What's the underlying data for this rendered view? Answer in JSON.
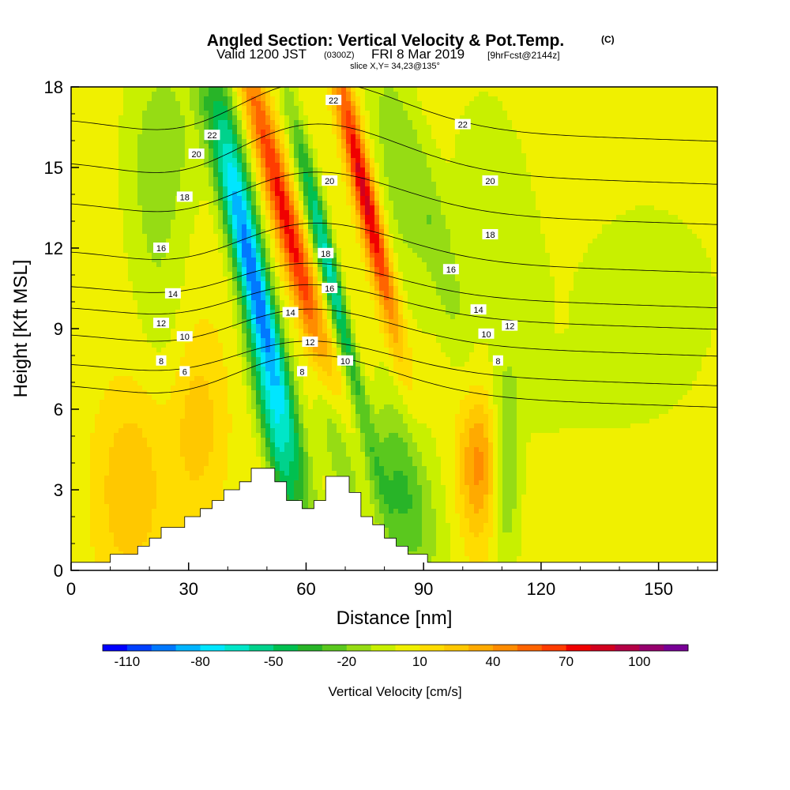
{
  "chart_data": {
    "type": "heatmap",
    "title": "Angled Section: Vertical Velocity & Pot.Temp.",
    "title_units": "(C)",
    "subtitle": {
      "valid_prefix": "Valid 1200 JST",
      "utc": "(0300Z)",
      "date": "FRI 8 Mar 2019",
      "fcst": "[9hrFcst@2144z]"
    },
    "slice_label": "slice X,Y= 34,23@135°",
    "xlabel": "Distance [nm]",
    "ylabel": "Height [Kft MSL]",
    "xlim": [
      0,
      165
    ],
    "ylim": [
      0,
      18
    ],
    "x_ticks": [
      0,
      30,
      60,
      90,
      120,
      150
    ],
    "y_ticks": [
      0,
      3,
      6,
      9,
      12,
      15,
      18
    ],
    "colorbar": {
      "label": "Vertical Velocity [cm/s]",
      "tick_labels": [
        "-110",
        "-80",
        "-50",
        "-20",
        "10",
        "40",
        "70",
        "100"
      ],
      "bounds": [
        -120,
        120
      ],
      "colors": [
        "#0000ff",
        "#0040ff",
        "#0078ff",
        "#00b4ff",
        "#00e6ff",
        "#00e6c8",
        "#00d28c",
        "#00c050",
        "#28b428",
        "#5ac81e",
        "#96dc14",
        "#c8f000",
        "#f0f000",
        "#ffdc00",
        "#ffc800",
        "#ffaa00",
        "#ff8c00",
        "#ff6400",
        "#ff3c00",
        "#f00000",
        "#d2001e",
        "#b40046",
        "#96006e",
        "#780096"
      ]
    },
    "terrain": {
      "description": "white terrain silhouette",
      "profile": [
        [
          0,
          0.3
        ],
        [
          10,
          0.3
        ],
        [
          10,
          0.6
        ],
        [
          17,
          0.6
        ],
        [
          17,
          0.9
        ],
        [
          20,
          0.9
        ],
        [
          20,
          1.2
        ],
        [
          23,
          1.2
        ],
        [
          23,
          1.6
        ],
        [
          29,
          1.6
        ],
        [
          29,
          2.0
        ],
        [
          33,
          2.0
        ],
        [
          33,
          2.3
        ],
        [
          36,
          2.3
        ],
        [
          36,
          2.6
        ],
        [
          39,
          2.6
        ],
        [
          39,
          3.0
        ],
        [
          43,
          3.0
        ],
        [
          43,
          3.3
        ],
        [
          46,
          3.3
        ],
        [
          46,
          3.8
        ],
        [
          52,
          3.8
        ],
        [
          52,
          3.3
        ],
        [
          55,
          3.3
        ],
        [
          55,
          2.6
        ],
        [
          59,
          2.6
        ],
        [
          59,
          2.3
        ],
        [
          62,
          2.3
        ],
        [
          62,
          2.6
        ],
        [
          65,
          2.6
        ],
        [
          65,
          3.5
        ],
        [
          71,
          3.5
        ],
        [
          71,
          2.9
        ],
        [
          74,
          2.9
        ],
        [
          74,
          2.0
        ],
        [
          77,
          2.0
        ],
        [
          77,
          1.7
        ],
        [
          80,
          1.7
        ],
        [
          80,
          1.2
        ],
        [
          83,
          1.2
        ],
        [
          83,
          0.9
        ],
        [
          86,
          0.9
        ],
        [
          86,
          0.6
        ],
        [
          91,
          0.6
        ],
        [
          91,
          0.3
        ],
        [
          165,
          0.3
        ]
      ]
    },
    "w_field": [
      {
        "x": 47,
        "y": 10.5,
        "value": -95,
        "sx": 2.6,
        "sy": 4.5,
        "tilt": 0.34
      },
      {
        "x": 42,
        "y": 15.5,
        "value": -40,
        "sx": 2.2,
        "sy": 3.0,
        "tilt": 0.3
      },
      {
        "x": 52,
        "y": 5.0,
        "value": -55,
        "sx": 2.5,
        "sy": 3.0,
        "tilt": 0.3
      },
      {
        "x": 67,
        "y": 10.5,
        "value": -80,
        "sx": 1.8,
        "sy": 4.2,
        "tilt": 0.32
      },
      {
        "x": 68,
        "y": 5.0,
        "value": -35,
        "sx": 2.5,
        "sy": 2.5,
        "tilt": 0.3
      },
      {
        "x": 55,
        "y": 13.0,
        "value": 70,
        "sx": 2.4,
        "sy": 5.0,
        "tilt": 0.35
      },
      {
        "x": 75,
        "y": 14.0,
        "value": 80,
        "sx": 2.0,
        "sy": 3.8,
        "tilt": 0.3
      },
      {
        "x": 72,
        "y": 7.5,
        "value": 25,
        "sx": 2.8,
        "sy": 3.0,
        "tilt": 0.3
      },
      {
        "x": 84,
        "y": 3.0,
        "value": -38,
        "sx": 6.0,
        "sy": 2.5,
        "tilt": 0.25
      },
      {
        "x": 24,
        "y": 16.0,
        "value": -20,
        "sx": 6.0,
        "sy": 2.5,
        "tilt": 0.0
      },
      {
        "x": 22,
        "y": 11.0,
        "value": -12,
        "sx": 5.0,
        "sy": 3.5,
        "tilt": 0.15
      },
      {
        "x": 83,
        "y": 15.0,
        "value": -20,
        "sx": 4.0,
        "sy": 3.5,
        "tilt": 0.2
      },
      {
        "x": 93,
        "y": 12.5,
        "value": -20,
        "sx": 3.0,
        "sy": 3.0,
        "tilt": 0.3
      },
      {
        "x": 104,
        "y": 4.0,
        "value": 40,
        "sx": 3.5,
        "sy": 2.0,
        "tilt": 0.0
      },
      {
        "x": 111,
        "y": 3.5,
        "value": -25,
        "sx": 2.5,
        "sy": 2.5,
        "tilt": 0.0
      },
      {
        "x": 108,
        "y": 12.5,
        "value": -12,
        "sx": 8.0,
        "sy": 4.0,
        "tilt": 0.1
      },
      {
        "x": 15,
        "y": 3.0,
        "value": 25,
        "sx": 6.0,
        "sy": 2.5,
        "tilt": 0.0
      },
      {
        "x": 32,
        "y": 5.5,
        "value": 22,
        "sx": 5.0,
        "sy": 2.5,
        "tilt": 0.0
      },
      {
        "x": 147,
        "y": 10.0,
        "value": -10,
        "sx": 15.0,
        "sy": 3.0,
        "tilt": 0.0
      },
      {
        "x": 125,
        "y": 6.5,
        "value": -8,
        "sx": 15.0,
        "sy": 1.0,
        "tilt": 0.0
      }
    ],
    "w_background": 5,
    "theta_isotherms": [
      {
        "value": 6,
        "label": "6",
        "y0": 6.5,
        "amp": 1.5,
        "ridge_x": 60
      },
      {
        "value": 8,
        "label": "8",
        "y0": 7.3,
        "amp": 1.2,
        "ridge_x": 60
      },
      {
        "value": 10,
        "label": "10",
        "y0": 8.4,
        "amp": 1.3,
        "ridge_x": 60
      },
      {
        "value": 12,
        "label": "12",
        "y0": 9.4,
        "amp": 1.2,
        "ridge_x": 60
      },
      {
        "value": 14,
        "label": "14",
        "y0": 10.2,
        "amp": 1.2,
        "ridge_x": 60
      },
      {
        "value": 16,
        "label": "16",
        "y0": 11.5,
        "amp": 1.4,
        "ridge_x": 62
      },
      {
        "value": 18,
        "label": "18",
        "y0": 13.3,
        "amp": 1.5,
        "ridge_x": 62
      },
      {
        "value": 20,
        "label": "20",
        "y0": 14.8,
        "amp": 1.8,
        "ridge_x": 62
      },
      {
        "value": 22,
        "label": "22",
        "y0": 16.4,
        "amp": 1.8,
        "ridge_x": 62
      }
    ],
    "contour_labels": [
      {
        "text": "22",
        "x": 36,
        "y": 16.2
      },
      {
        "text": "20",
        "x": 32,
        "y": 15.5
      },
      {
        "text": "18",
        "x": 29,
        "y": 13.9
      },
      {
        "text": "16",
        "x": 23,
        "y": 12.0
      },
      {
        "text": "14",
        "x": 26,
        "y": 10.3
      },
      {
        "text": "12",
        "x": 23,
        "y": 9.2
      },
      {
        "text": "10",
        "x": 29,
        "y": 8.7
      },
      {
        "text": "8",
        "x": 23,
        "y": 7.8
      },
      {
        "text": "6",
        "x": 29,
        "y": 7.4
      },
      {
        "text": "14",
        "x": 56,
        "y": 9.6
      },
      {
        "text": "12",
        "x": 61,
        "y": 8.5
      },
      {
        "text": "8",
        "x": 59,
        "y": 7.4
      },
      {
        "text": "22",
        "x": 67,
        "y": 17.5
      },
      {
        "text": "20",
        "x": 66,
        "y": 14.5
      },
      {
        "text": "18",
        "x": 65,
        "y": 11.8
      },
      {
        "text": "16",
        "x": 66,
        "y": 10.5
      },
      {
        "text": "10",
        "x": 70,
        "y": 7.8
      },
      {
        "text": "22",
        "x": 100,
        "y": 16.6
      },
      {
        "text": "20",
        "x": 107,
        "y": 14.5
      },
      {
        "text": "18",
        "x": 107,
        "y": 12.5
      },
      {
        "text": "16",
        "x": 97,
        "y": 11.2
      },
      {
        "text": "14",
        "x": 104,
        "y": 9.7
      },
      {
        "text": "12",
        "x": 112,
        "y": 9.1
      },
      {
        "text": "10",
        "x": 106,
        "y": 8.8
      },
      {
        "text": "8",
        "x": 109,
        "y": 7.8
      }
    ]
  }
}
